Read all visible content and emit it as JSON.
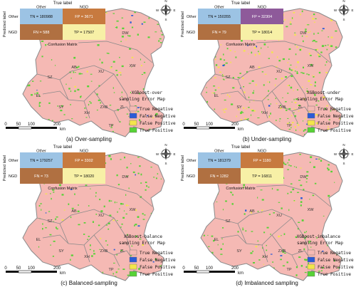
{
  "colors": {
    "true_negative": "#f5b9b4",
    "false_negative": "#2a5bd7",
    "false_positive": "#f3e64a",
    "true_positive": "#57d236",
    "cm_tn": "#9cc3e4",
    "cm_fn": "#b07041",
    "cm_fp_dark": "#8e5a9a",
    "cm_fp_orange": "#c77a3f",
    "cm_tp": "#f7f0a6",
    "boundary": "#8a8a8a"
  },
  "common": {
    "true_label": "True label",
    "predicted_label": "Predicted label",
    "col_other": "Other",
    "col_ngd": "NGD",
    "row_other": "Other",
    "row_ngd": "NGD",
    "cm_title": "Confusion Matrix",
    "legend_items": [
      "True Negative",
      "False Negative",
      "False Positive",
      "True Positive"
    ],
    "scale_ticks": [
      "0",
      "50",
      "100",
      "200"
    ],
    "scale_unit": "km",
    "north_letters": [
      "N",
      "E",
      "S",
      "W"
    ],
    "region_labels": [
      "DW",
      "XW",
      "AB",
      "XU",
      "SZ",
      "EL",
      "SY",
      "XH",
      "ZXB",
      "ZL",
      "DL",
      "TP"
    ]
  },
  "panels": [
    {
      "caption": "(a) Over-sampling",
      "map_title_1": "XGBoost-over",
      "map_title_2": "sampling  Error Map",
      "cm": {
        "tn": "TN = 180988",
        "fp": "FP = 3671",
        "fn": "FN = 588",
        "tp": "TP = 17507"
      },
      "fp_cell": "cm_fp_orange",
      "fp_density": 0.05
    },
    {
      "caption": "(b) Under-sampling",
      "map_title_1": "XGBoost-under",
      "map_title_2": "sampling  Error Map",
      "cm": {
        "tn": "TN = 150355",
        "fp": "FP = 32304",
        "fn": "FN = 79",
        "tp": "TP = 18014"
      },
      "fp_cell": "cm_fp_dark",
      "fp_density": 0.35
    },
    {
      "caption": "(c) Balanced-sampling",
      "map_title_1": "XGBoost-balance",
      "map_title_2": "sampling  Error Map",
      "cm": {
        "tn": "TN = 179257",
        "fp": "FP = 3302",
        "fn": "FN = 73",
        "tp": "TP = 18020"
      },
      "fp_cell": "cm_fp_orange",
      "fp_density": 0.05
    },
    {
      "caption": "(d) Imbalanced sampling",
      "map_title_1": "XGBoost-imbalance",
      "map_title_2": "sampling  Error Map",
      "cm": {
        "tn": "TN = 181379",
        "fp": "FP = 1180",
        "fn": "FN = 1282",
        "tp": "TP = 16811"
      },
      "fp_cell": "cm_fp_orange",
      "fp_density": 0.02
    }
  ]
}
